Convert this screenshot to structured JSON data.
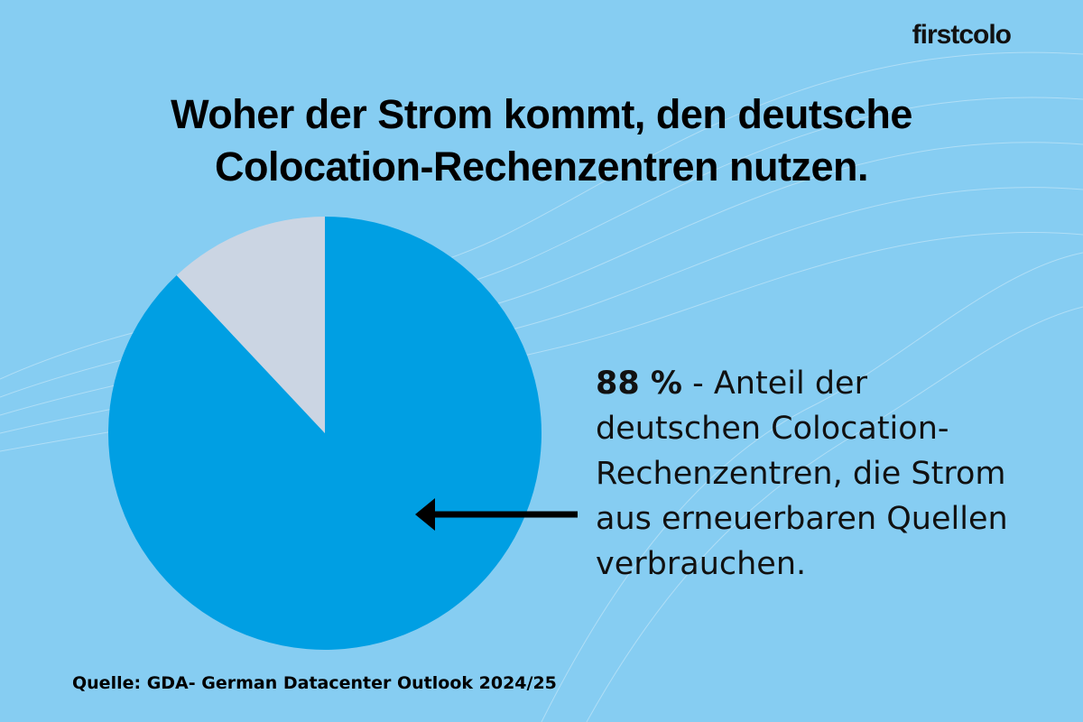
{
  "chart_data": {
    "type": "pie",
    "brand": "firstcolo",
    "title": "Woher der Strom kommt, den deutsche Colocation-Rechenzentren nutzen.",
    "values": [
      88,
      12
    ],
    "value_labels": [
      "88 %",
      null
    ],
    "colors": [
      "#009fe3",
      "#cbd5e3"
    ],
    "annotation": "- Anteil der deutschen Colocation-Rechenzentren, die Strom aus erneuerbaren Quellen verbrauchen.",
    "source": "Quelle: GDA- German Datacenter Outlook 2024/25"
  }
}
